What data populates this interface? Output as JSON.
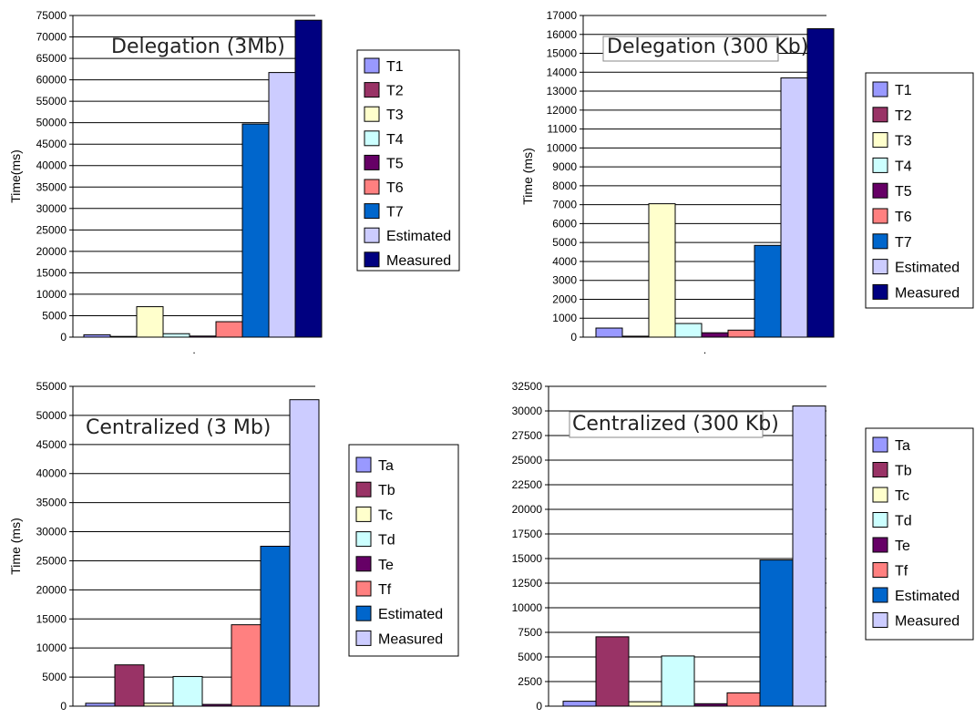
{
  "chart_data": [
    {
      "type": "bar",
      "title": "Delegation (3Mb)",
      "ylabel": "Time(ms)",
      "ylim": [
        0,
        75000
      ],
      "y_ticks": [
        0,
        5000,
        10000,
        15000,
        20000,
        25000,
        30000,
        35000,
        40000,
        45000,
        50000,
        55000,
        60000,
        65000,
        70000,
        75000
      ],
      "x_tick_label": ".",
      "grid": true,
      "legend_position": "right",
      "series": [
        {
          "name": "T1",
          "value": 550,
          "color": "#9999FF"
        },
        {
          "name": "T2",
          "value": 150,
          "color": "#993366"
        },
        {
          "name": "T3",
          "value": 7100,
          "color": "#FFFFCC"
        },
        {
          "name": "T4",
          "value": 800,
          "color": "#CCFFFF"
        },
        {
          "name": "T5",
          "value": 250,
          "color": "#660066"
        },
        {
          "name": "T6",
          "value": 3600,
          "color": "#FF8080"
        },
        {
          "name": "T7",
          "value": 49700,
          "color": "#0066CC"
        },
        {
          "name": "Estimated",
          "value": 61700,
          "color": "#CCCCFF"
        },
        {
          "name": "Measured",
          "value": 73900,
          "color": "#000080"
        }
      ]
    },
    {
      "type": "bar",
      "title": "Delegation (300 Kb)",
      "ylabel": "Time (ms)",
      "ylim": [
        0,
        17000
      ],
      "y_ticks": [
        0,
        1000,
        2000,
        3000,
        4000,
        5000,
        6000,
        7000,
        8000,
        9000,
        10000,
        11000,
        12000,
        13000,
        14000,
        15000,
        16000,
        17000
      ],
      "x_tick_label": ".",
      "grid": true,
      "legend_position": "right",
      "series": [
        {
          "name": "T1",
          "value": 480,
          "color": "#9999FF"
        },
        {
          "name": "T2",
          "value": 50,
          "color": "#993366"
        },
        {
          "name": "T3",
          "value": 7050,
          "color": "#FFFFCC"
        },
        {
          "name": "T4",
          "value": 720,
          "color": "#CCFFFF"
        },
        {
          "name": "T5",
          "value": 230,
          "color": "#660066"
        },
        {
          "name": "T6",
          "value": 370,
          "color": "#FF8080"
        },
        {
          "name": "T7",
          "value": 4850,
          "color": "#0066CC"
        },
        {
          "name": "Estimated",
          "value": 13700,
          "color": "#CCCCFF"
        },
        {
          "name": "Measured",
          "value": 16300,
          "color": "#000080"
        }
      ]
    },
    {
      "type": "bar",
      "title": "Centralized (3 Mb)",
      "ylabel": "Time (ms)",
      "ylim": [
        0,
        55000
      ],
      "y_ticks": [
        0,
        5000,
        10000,
        15000,
        20000,
        25000,
        30000,
        35000,
        40000,
        45000,
        50000,
        55000
      ],
      "x_tick_label": "",
      "grid": true,
      "legend_position": "right",
      "series": [
        {
          "name": "Ta",
          "value": 500,
          "color": "#9999FF"
        },
        {
          "name": "Tb",
          "value": 7100,
          "color": "#993366"
        },
        {
          "name": "Tc",
          "value": 500,
          "color": "#FFFFCC"
        },
        {
          "name": "Td",
          "value": 5100,
          "color": "#CCFFFF"
        },
        {
          "name": "Te",
          "value": 300,
          "color": "#660066"
        },
        {
          "name": "Tf",
          "value": 14000,
          "color": "#FF8080"
        },
        {
          "name": "Estimated",
          "value": 27500,
          "color": "#0066CC"
        },
        {
          "name": "Measured",
          "value": 52700,
          "color": "#CCCCFF"
        }
      ]
    },
    {
      "type": "bar",
      "title": "Centralized (300 Kb)",
      "ylabel": "",
      "ylim": [
        0,
        32500
      ],
      "y_ticks": [
        0,
        2500,
        5000,
        7500,
        10000,
        12500,
        15000,
        17500,
        20000,
        22500,
        25000,
        27500,
        30000,
        32500
      ],
      "x_tick_label": "",
      "grid": true,
      "legend_position": "right",
      "series": [
        {
          "name": "Ta",
          "value": 500,
          "color": "#9999FF"
        },
        {
          "name": "Tb",
          "value": 7050,
          "color": "#993366"
        },
        {
          "name": "Tc",
          "value": 450,
          "color": "#FFFFCC"
        },
        {
          "name": "Td",
          "value": 5100,
          "color": "#CCFFFF"
        },
        {
          "name": "Te",
          "value": 250,
          "color": "#660066"
        },
        {
          "name": "Tf",
          "value": 1350,
          "color": "#FF8080"
        },
        {
          "name": "Estimated",
          "value": 14850,
          "color": "#0066CC"
        },
        {
          "name": "Measured",
          "value": 30500,
          "color": "#CCCCFF"
        }
      ]
    }
  ]
}
